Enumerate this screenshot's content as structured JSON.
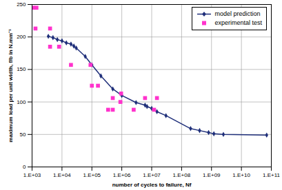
{
  "chart_data": {
    "type": "line",
    "x_label": "number of cycles to failure, Nf",
    "y_label": "maximum load per unit width, f/b in N.mm⁻¹",
    "log": "x",
    "grid": true,
    "legend": "top-right",
    "xlim": [
      1000,
      100000000000
    ],
    "xticks": [
      {
        "value": 1000,
        "label": "1.E+03"
      },
      {
        "value": 10000,
        "label": "1.E+04"
      },
      {
        "value": 100000,
        "label": "1.E+05"
      },
      {
        "value": 1000000,
        "label": "1.E+06"
      },
      {
        "value": 10000000,
        "label": "1.E+07"
      },
      {
        "value": 100000000,
        "label": "1.E+08"
      },
      {
        "value": 1000000000,
        "label": "1.E+09"
      },
      {
        "value": 10000000000,
        "label": "1.E+10"
      },
      {
        "value": 100000000000,
        "label": "1.E+11"
      }
    ],
    "ylim": [
      0,
      250
    ],
    "yticks": [
      0,
      50,
      100,
      150,
      200,
      250
    ],
    "series": [
      {
        "name": "model prediction",
        "type": "line",
        "color": "#1f2f7a",
        "marker": "diamond",
        "line_style": "solid",
        "x": [
          3500,
          5000,
          7000,
          10000,
          14000,
          20000,
          25000,
          30000,
          60000,
          100000,
          200000,
          500000,
          1000000,
          3000000,
          6000000,
          7000000,
          10000000,
          15000000,
          30000000,
          200000000,
          400000000,
          800000000,
          1200000000,
          2500000000,
          70000000000
        ],
        "values": [
          201,
          199,
          196,
          194,
          191,
          189,
          186,
          183,
          170,
          157,
          140,
          120,
          110,
          99,
          95,
          93,
          90,
          85,
          79,
          59,
          56,
          53,
          51,
          50,
          49
        ]
      },
      {
        "name": "experimental test",
        "type": "scatter",
        "color": "#ff33cc",
        "marker": "square",
        "x": [
          1100,
          1400,
          1300,
          4000,
          4000,
          8000,
          20000,
          90000,
          100000,
          160000,
          350000,
          500000,
          500000,
          900000,
          950000,
          2500000,
          6000000,
          15000000,
          12000000
        ],
        "values": [
          245,
          245,
          213,
          213,
          185,
          185,
          157,
          157,
          125,
          125,
          88,
          88,
          106,
          100,
          113,
          88,
          106,
          106,
          88
        ]
      }
    ]
  }
}
